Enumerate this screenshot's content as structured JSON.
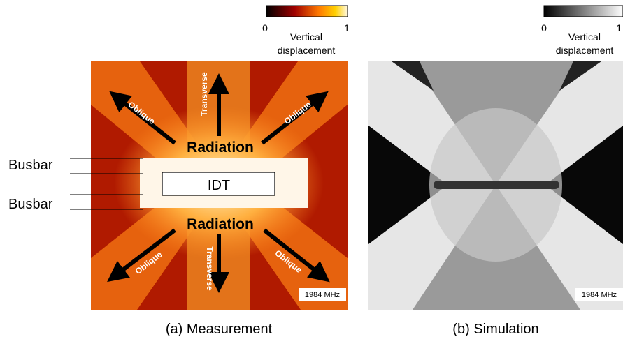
{
  "panels": [
    {
      "colorbar": {
        "min": "0",
        "max": "1",
        "label_line1": "Vertical",
        "label_line2": "displacement"
      },
      "frequency": "1984 MHz",
      "caption": "(a) Measurement",
      "busbar_labels": [
        "Busbar",
        "Busbar"
      ],
      "idt": "IDT",
      "radiation": [
        "Radiation",
        "Radiation"
      ],
      "transverse": [
        "Transverse",
        "Transverse"
      ],
      "oblique": [
        "Oblique",
        "Oblique",
        "Oblique",
        "Oblique"
      ]
    },
    {
      "colorbar": {
        "min": "0",
        "max": "1",
        "label_line1": "Vertical",
        "label_line2": "displacement"
      },
      "frequency": "1984 MHz",
      "caption": "(b) Simulation"
    }
  ]
}
